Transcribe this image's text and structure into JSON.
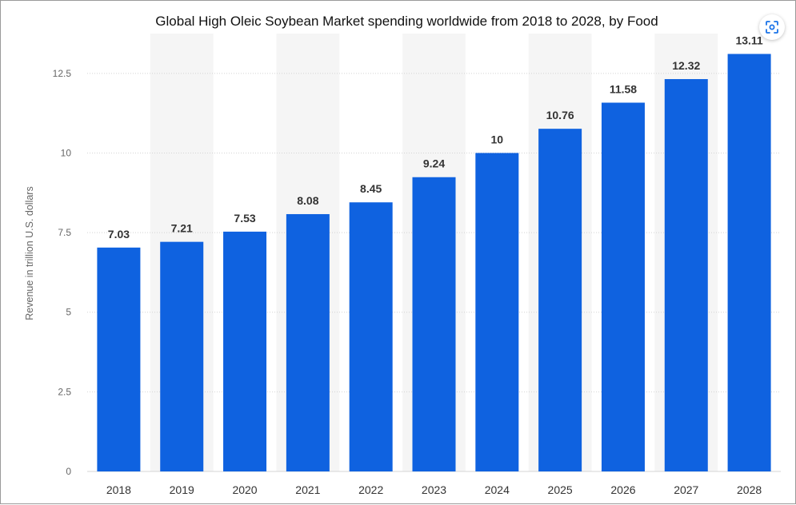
{
  "chart_data": {
    "type": "bar",
    "title": "Global High Oleic Soybean Market spending worldwide from 2018 to 2028, by Food",
    "ylabel": "Revenue in trillion U.S. dollars",
    "xlabel": "",
    "categories": [
      "2018",
      "2019",
      "2020",
      "2021",
      "2022",
      "2023",
      "2024",
      "2025",
      "2026",
      "2027",
      "2028"
    ],
    "values": [
      7.03,
      7.21,
      7.53,
      8.08,
      8.45,
      9.24,
      10,
      10.76,
      11.58,
      12.32,
      13.11
    ],
    "value_labels": [
      "7.03",
      "7.21",
      "7.53",
      "8.08",
      "8.45",
      "9.24",
      "10",
      "10.76",
      "11.58",
      "12.32",
      "13.11"
    ],
    "yticks": [
      0,
      2.5,
      5,
      7.5,
      10,
      12.5
    ],
    "ytick_labels": [
      "0",
      "2.5",
      "5",
      "7.5",
      "10",
      "12.5"
    ],
    "ylim": [
      0,
      13.75
    ],
    "grid": true,
    "bar_color": "#0f62e0",
    "band_color": "#f5f5f5",
    "grid_color": "#d4d4d4"
  },
  "toolbar": {
    "scan_icon": "scan-icon"
  }
}
